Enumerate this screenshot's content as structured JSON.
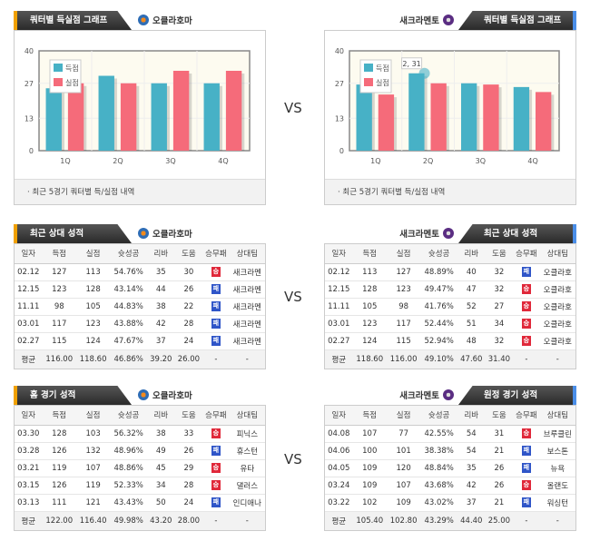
{
  "vs_label": "VS",
  "legend": {
    "scored": "득점",
    "allowed": "실점"
  },
  "colors": {
    "scored": "#47b1c6",
    "allowed": "#f56b7a",
    "win": "#e0283a",
    "loss": "#2f55c8"
  },
  "chart_footer": "· 최근 5경기 쿼터별 득/실점 내역",
  "columns": [
    "일자",
    "득점",
    "실점",
    "슛성공",
    "리바",
    "도움",
    "승무패",
    "상대팀"
  ],
  "sections": [
    {
      "left": {
        "tab": "쿼터별 득실점 그래프",
        "team": "오클라호마"
      },
      "right": {
        "tab": "쿼터별 득실점 그래프",
        "team": "새크라멘토"
      }
    },
    {
      "left": {
        "tab": "최근 상대 성적",
        "team": "오클라호마"
      },
      "right": {
        "tab": "최근 상대 성적",
        "team": "새크라멘토"
      }
    },
    {
      "left": {
        "tab": "홈 경기 성적",
        "team": "오클라호마"
      },
      "right": {
        "tab": "원정 경기 성적",
        "team": "새크라멘토"
      }
    }
  ],
  "chart_data": [
    {
      "type": "bar",
      "categories": [
        "1Q",
        "2Q",
        "3Q",
        "4Q"
      ],
      "ylim": [
        0,
        40
      ],
      "yticks": [
        "0",
        "13",
        "27",
        "40"
      ],
      "series": [
        {
          "name": "득점",
          "values": [
            25,
            30,
            27,
            27
          ]
        },
        {
          "name": "실점",
          "values": [
            27,
            27,
            32,
            32
          ]
        }
      ]
    },
    {
      "type": "bar",
      "categories": [
        "1Q",
        "2Q",
        "3Q",
        "4Q"
      ],
      "ylim": [
        0,
        40
      ],
      "yticks": [
        "0",
        "13",
        "27",
        "40"
      ],
      "tooltip": "2, 31",
      "series": [
        {
          "name": "득점",
          "values": [
            26.5,
            31,
            27,
            25.5
          ]
        },
        {
          "name": "실점",
          "values": [
            22.5,
            27,
            26.5,
            23.5
          ]
        }
      ]
    }
  ],
  "tables": [
    {
      "rows": [
        [
          "02.12",
          "127",
          "113",
          "54.76%",
          "35",
          "30",
          "승",
          "새크라멘"
        ],
        [
          "12.15",
          "123",
          "128",
          "43.14%",
          "44",
          "26",
          "패",
          "새크라멘"
        ],
        [
          "11.11",
          "98",
          "105",
          "44.83%",
          "38",
          "22",
          "패",
          "새크라멘"
        ],
        [
          "03.01",
          "117",
          "123",
          "43.88%",
          "42",
          "28",
          "패",
          "새크라멘"
        ],
        [
          "02.27",
          "115",
          "124",
          "47.67%",
          "37",
          "24",
          "패",
          "새크라멘"
        ]
      ],
      "avg": [
        "평균",
        "116.00",
        "118.60",
        "46.86%",
        "39.20",
        "26.00",
        "-",
        "-"
      ]
    },
    {
      "rows": [
        [
          "02.12",
          "113",
          "127",
          "48.89%",
          "40",
          "32",
          "패",
          "오클라호"
        ],
        [
          "12.15",
          "128",
          "123",
          "49.47%",
          "47",
          "32",
          "승",
          "오클라호"
        ],
        [
          "11.11",
          "105",
          "98",
          "41.76%",
          "52",
          "27",
          "승",
          "오클라호"
        ],
        [
          "03.01",
          "123",
          "117",
          "52.44%",
          "51",
          "34",
          "승",
          "오클라호"
        ],
        [
          "02.27",
          "124",
          "115",
          "52.94%",
          "48",
          "32",
          "승",
          "오클라호"
        ]
      ],
      "avg": [
        "평균",
        "118.60",
        "116.00",
        "49.10%",
        "47.60",
        "31.40",
        "-",
        "-"
      ]
    },
    {
      "rows": [
        [
          "03.30",
          "128",
          "103",
          "56.32%",
          "38",
          "33",
          "승",
          "피닉스"
        ],
        [
          "03.28",
          "126",
          "132",
          "48.96%",
          "49",
          "26",
          "패",
          "휴스턴"
        ],
        [
          "03.21",
          "119",
          "107",
          "48.86%",
          "45",
          "29",
          "승",
          "유타"
        ],
        [
          "03.15",
          "126",
          "119",
          "52.33%",
          "34",
          "28",
          "승",
          "댈러스"
        ],
        [
          "03.13",
          "111",
          "121",
          "43.43%",
          "50",
          "24",
          "패",
          "인디애나"
        ]
      ],
      "avg": [
        "평균",
        "122.00",
        "116.40",
        "49.98%",
        "43.20",
        "28.00",
        "-",
        "-"
      ]
    },
    {
      "rows": [
        [
          "04.08",
          "107",
          "77",
          "42.55%",
          "54",
          "31",
          "승",
          "브루클린"
        ],
        [
          "04.06",
          "100",
          "101",
          "38.38%",
          "54",
          "21",
          "패",
          "보스톤"
        ],
        [
          "04.05",
          "109",
          "120",
          "48.84%",
          "35",
          "26",
          "패",
          "뉴욕"
        ],
        [
          "03.24",
          "109",
          "107",
          "43.68%",
          "42",
          "26",
          "승",
          "올랜도"
        ],
        [
          "03.22",
          "102",
          "109",
          "43.02%",
          "37",
          "21",
          "패",
          "워싱턴"
        ]
      ],
      "avg": [
        "평균",
        "105.40",
        "102.80",
        "43.29%",
        "44.40",
        "25.00",
        "-",
        "-"
      ]
    }
  ]
}
